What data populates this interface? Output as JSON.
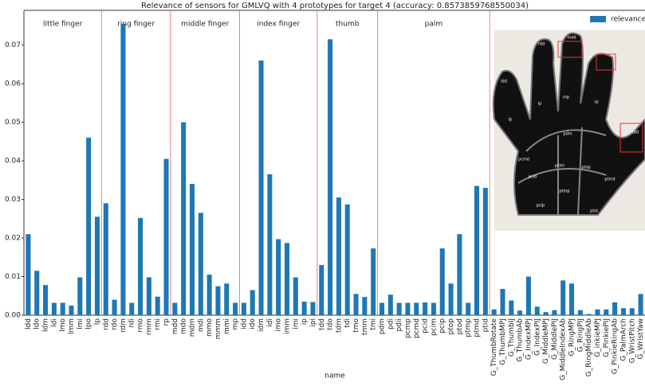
{
  "chart_data": {
    "type": "bar",
    "title": "Relevance of sensors for GMLVQ with 4 prototypes for target 4 (accuracy: 0.8573859768550034)",
    "x_label": "name",
    "categories": [
      "ldd",
      "ldo",
      "ldm",
      "ldi",
      "lmo",
      "lmm",
      "lmi",
      "lpo",
      "lp",
      "rdd",
      "rdo",
      "rdm",
      "rdi",
      "rmo",
      "rmm",
      "rmi",
      "rp",
      "mdd",
      "mdo",
      "mdm",
      "mdi",
      "mmo",
      "mmm",
      "mmi",
      "mp",
      "idd",
      "ido",
      "idm",
      "idi",
      "imo",
      "imm",
      "imi",
      "ip",
      "ipi",
      "tdd",
      "tdo",
      "tdm",
      "tdi",
      "tmo",
      "tmm",
      "tmi",
      "pdm",
      "pdi",
      "pdii",
      "pcmp",
      "pcmd",
      "pcid",
      "pcim",
      "pcip",
      "ptop",
      "ptod",
      "ptmp",
      "ptmd",
      "ptid",
      "G_ThumbRotate",
      "G_ThumbMPJ",
      "G_ThumbIJ",
      "G_ThumbAb",
      "G_IndexMPJ",
      "G_IndexPIJ",
      "G_MiddleMPJ",
      "G_MiddlePIJ",
      "G_MiddleIndexAb",
      "G_RingMPJ",
      "G_RingPIJ",
      "G_RingMiddleAb",
      "G_inkieMPJ",
      "G_PinkiePIJ",
      "G_PinkieRingAb",
      "G_PalmArch",
      "G_WristPitch",
      "G_WristYaw"
    ],
    "series": [
      {
        "name": "relevance",
        "color": "#1f77b4",
        "values": [
          0.021,
          0.0115,
          0.0078,
          0.0032,
          0.0032,
          0.0025,
          0.0098,
          0.046,
          0.0255,
          0.029,
          0.004,
          0.0755,
          0.0032,
          0.0252,
          0.0098,
          0.0048,
          0.0405,
          0.0032,
          0.05,
          0.034,
          0.0265,
          0.0105,
          0.0075,
          0.0082,
          0.0032,
          0.0032,
          0.0065,
          0.066,
          0.0365,
          0.0197,
          0.0187,
          0.0098,
          0.0035,
          0.0034,
          0.013,
          0.0715,
          0.0305,
          0.0287,
          0.0055,
          0.0047,
          0.0173,
          0.0032,
          0.0053,
          0.0032,
          0.0032,
          0.0032,
          0.0033,
          0.0032,
          0.0173,
          0.0082,
          0.021,
          0.0032,
          0.0335,
          0.033,
          0.0015,
          0.0068,
          0.0038,
          0.0012,
          0.01,
          0.0022,
          0.0008,
          0.0013,
          0.009,
          0.0082,
          0.0013,
          0.0003,
          0.0015,
          0.0015,
          0.0033,
          0.0018,
          0.0018,
          0.0055
        ]
      }
    ],
    "ylim": [
      0,
      0.079
    ],
    "yticks": [
      {
        "value": 0,
        "label": "0.00"
      },
      {
        "value": 0.01,
        "label": "0.01"
      },
      {
        "value": 0.02,
        "label": "0.02"
      },
      {
        "value": 0.03,
        "label": "0.03"
      },
      {
        "value": 0.04,
        "label": "0.04"
      },
      {
        "value": 0.05,
        "label": "0.05"
      },
      {
        "value": 0.06,
        "label": "0.06"
      },
      {
        "value": 0.07,
        "label": "0.07"
      }
    ],
    "legend": "upper right",
    "sections": [
      {
        "label": "little finger",
        "from": "ldd",
        "to": "lp"
      },
      {
        "label": "ring finger",
        "from": "rdd",
        "to": "rp"
      },
      {
        "label": "middle finger",
        "from": "mdd",
        "to": "mp"
      },
      {
        "label": "index finger",
        "from": "idd",
        "to": "ipi"
      },
      {
        "label": "thumb",
        "from": "tdd",
        "to": "tmi"
      },
      {
        "label": "palm",
        "from": "pdm",
        "to": "ptid"
      }
    ],
    "section_line_color": "#f08080",
    "inset_labels": [
      "mdd",
      "rdd",
      "ldd",
      "idd",
      "tdd",
      "pdm",
      "pcid",
      "pcmd",
      "pcim",
      "pcip",
      "ptop",
      "ptmp",
      "ptmd",
      "ptid",
      "mp",
      "ip",
      "lp",
      "rp"
    ]
  }
}
